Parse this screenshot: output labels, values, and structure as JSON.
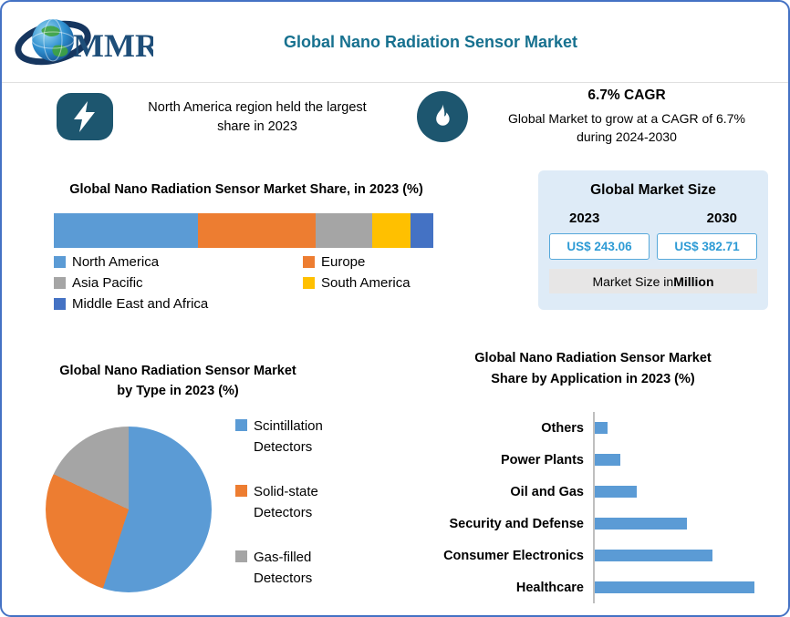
{
  "page": {
    "border_color": "#4472C4",
    "background": "#FFFFFF"
  },
  "header": {
    "logo_text": "MMR",
    "title": "Global Nano Radiation Sensor Market",
    "title_color": "#17718F"
  },
  "highlights": {
    "left": {
      "icon": "lightning-icon",
      "text": "North America region held the largest share in 2023"
    },
    "right": {
      "icon": "flame-icon",
      "title": "6.7% CAGR",
      "text": "Global Market to grow at a CAGR of 6.7% during 2024-2030"
    }
  },
  "market_size": {
    "title": "Global Market Size",
    "years": [
      "2023",
      "2030"
    ],
    "values": [
      "US$ 243.06",
      "US$ 382.71"
    ],
    "note_prefix": "Market Size in ",
    "note_bold": "Million",
    "value_color": "#2E9BD5",
    "panel_bg": "#DEEBF7"
  },
  "chart_data": [
    {
      "type": "bar",
      "variant": "stacked-horizontal-100pct",
      "title": "Global Nano Radiation Sensor Market Share, in 2023 (%)",
      "categories": [
        "North America",
        "Europe",
        "Asia Pacific",
        "South America",
        "Middle East and Africa"
      ],
      "values": [
        38,
        31,
        15,
        10,
        6
      ],
      "unit": "%",
      "colors": [
        "#5B9BD5",
        "#ED7D31",
        "#A5A5A5",
        "#FFC000",
        "#4472C4"
      ],
      "legend_position": "bottom"
    },
    {
      "type": "pie",
      "title": "Global Nano Radiation Sensor Market by Type in 2023 (%)",
      "categories": [
        "Scintillation Detectors",
        "Solid-state Detectors",
        "Gas-filled Detectors"
      ],
      "values": [
        55,
        27,
        18
      ],
      "unit": "%",
      "colors": [
        "#5B9BD5",
        "#ED7D31",
        "#A5A5A5"
      ],
      "legend_position": "right",
      "start_angle_deg": 0
    },
    {
      "type": "bar",
      "variant": "horizontal",
      "title": "Global Nano Radiation Sensor Market Share by Application in 2023 (%)",
      "categories": [
        "Others",
        "Power Plants",
        "Oil and Gas",
        "Security and Defense",
        "Consumer Electronics",
        "Healthcare"
      ],
      "values": [
        3,
        6,
        10,
        22,
        28,
        38
      ],
      "unit": "%",
      "xlim": [
        0,
        40
      ],
      "bar_color": "#5B9BD5",
      "axis_line": true,
      "grid": false
    }
  ]
}
